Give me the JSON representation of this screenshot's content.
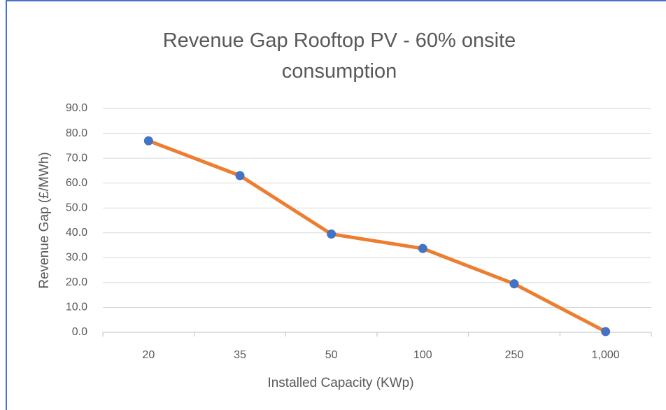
{
  "chart_data": {
    "type": "line",
    "title": "Revenue Gap Rooftop PV - 60% onsite consumption",
    "x_label": "Installed Capacity (KWp)",
    "y_label": "Revenue Gap (£/MWh)",
    "categories": [
      "20",
      "35",
      "50",
      "100",
      "250",
      "1,000"
    ],
    "series": [
      {
        "name": "Revenue Gap",
        "line_color": "#ed7d31",
        "color": "#4472c4",
        "values": [
          77,
          63,
          39.5,
          33.7,
          19.5,
          0.3
        ]
      }
    ],
    "ylim": [
      0,
      90
    ],
    "yticks": [
      {
        "value": 0,
        "label": "0.0"
      },
      {
        "value": 10,
        "label": "10.0"
      },
      {
        "value": 20,
        "label": "20.0"
      },
      {
        "value": 30,
        "label": "30.0"
      },
      {
        "value": 40,
        "label": "40.0"
      },
      {
        "value": 50,
        "label": "50.0"
      },
      {
        "value": 60,
        "label": "60.0"
      },
      {
        "value": 70,
        "label": "70.0"
      },
      {
        "value": 80,
        "label": "80.0"
      },
      {
        "value": 90,
        "label": "90.0"
      }
    ],
    "grid": true
  }
}
